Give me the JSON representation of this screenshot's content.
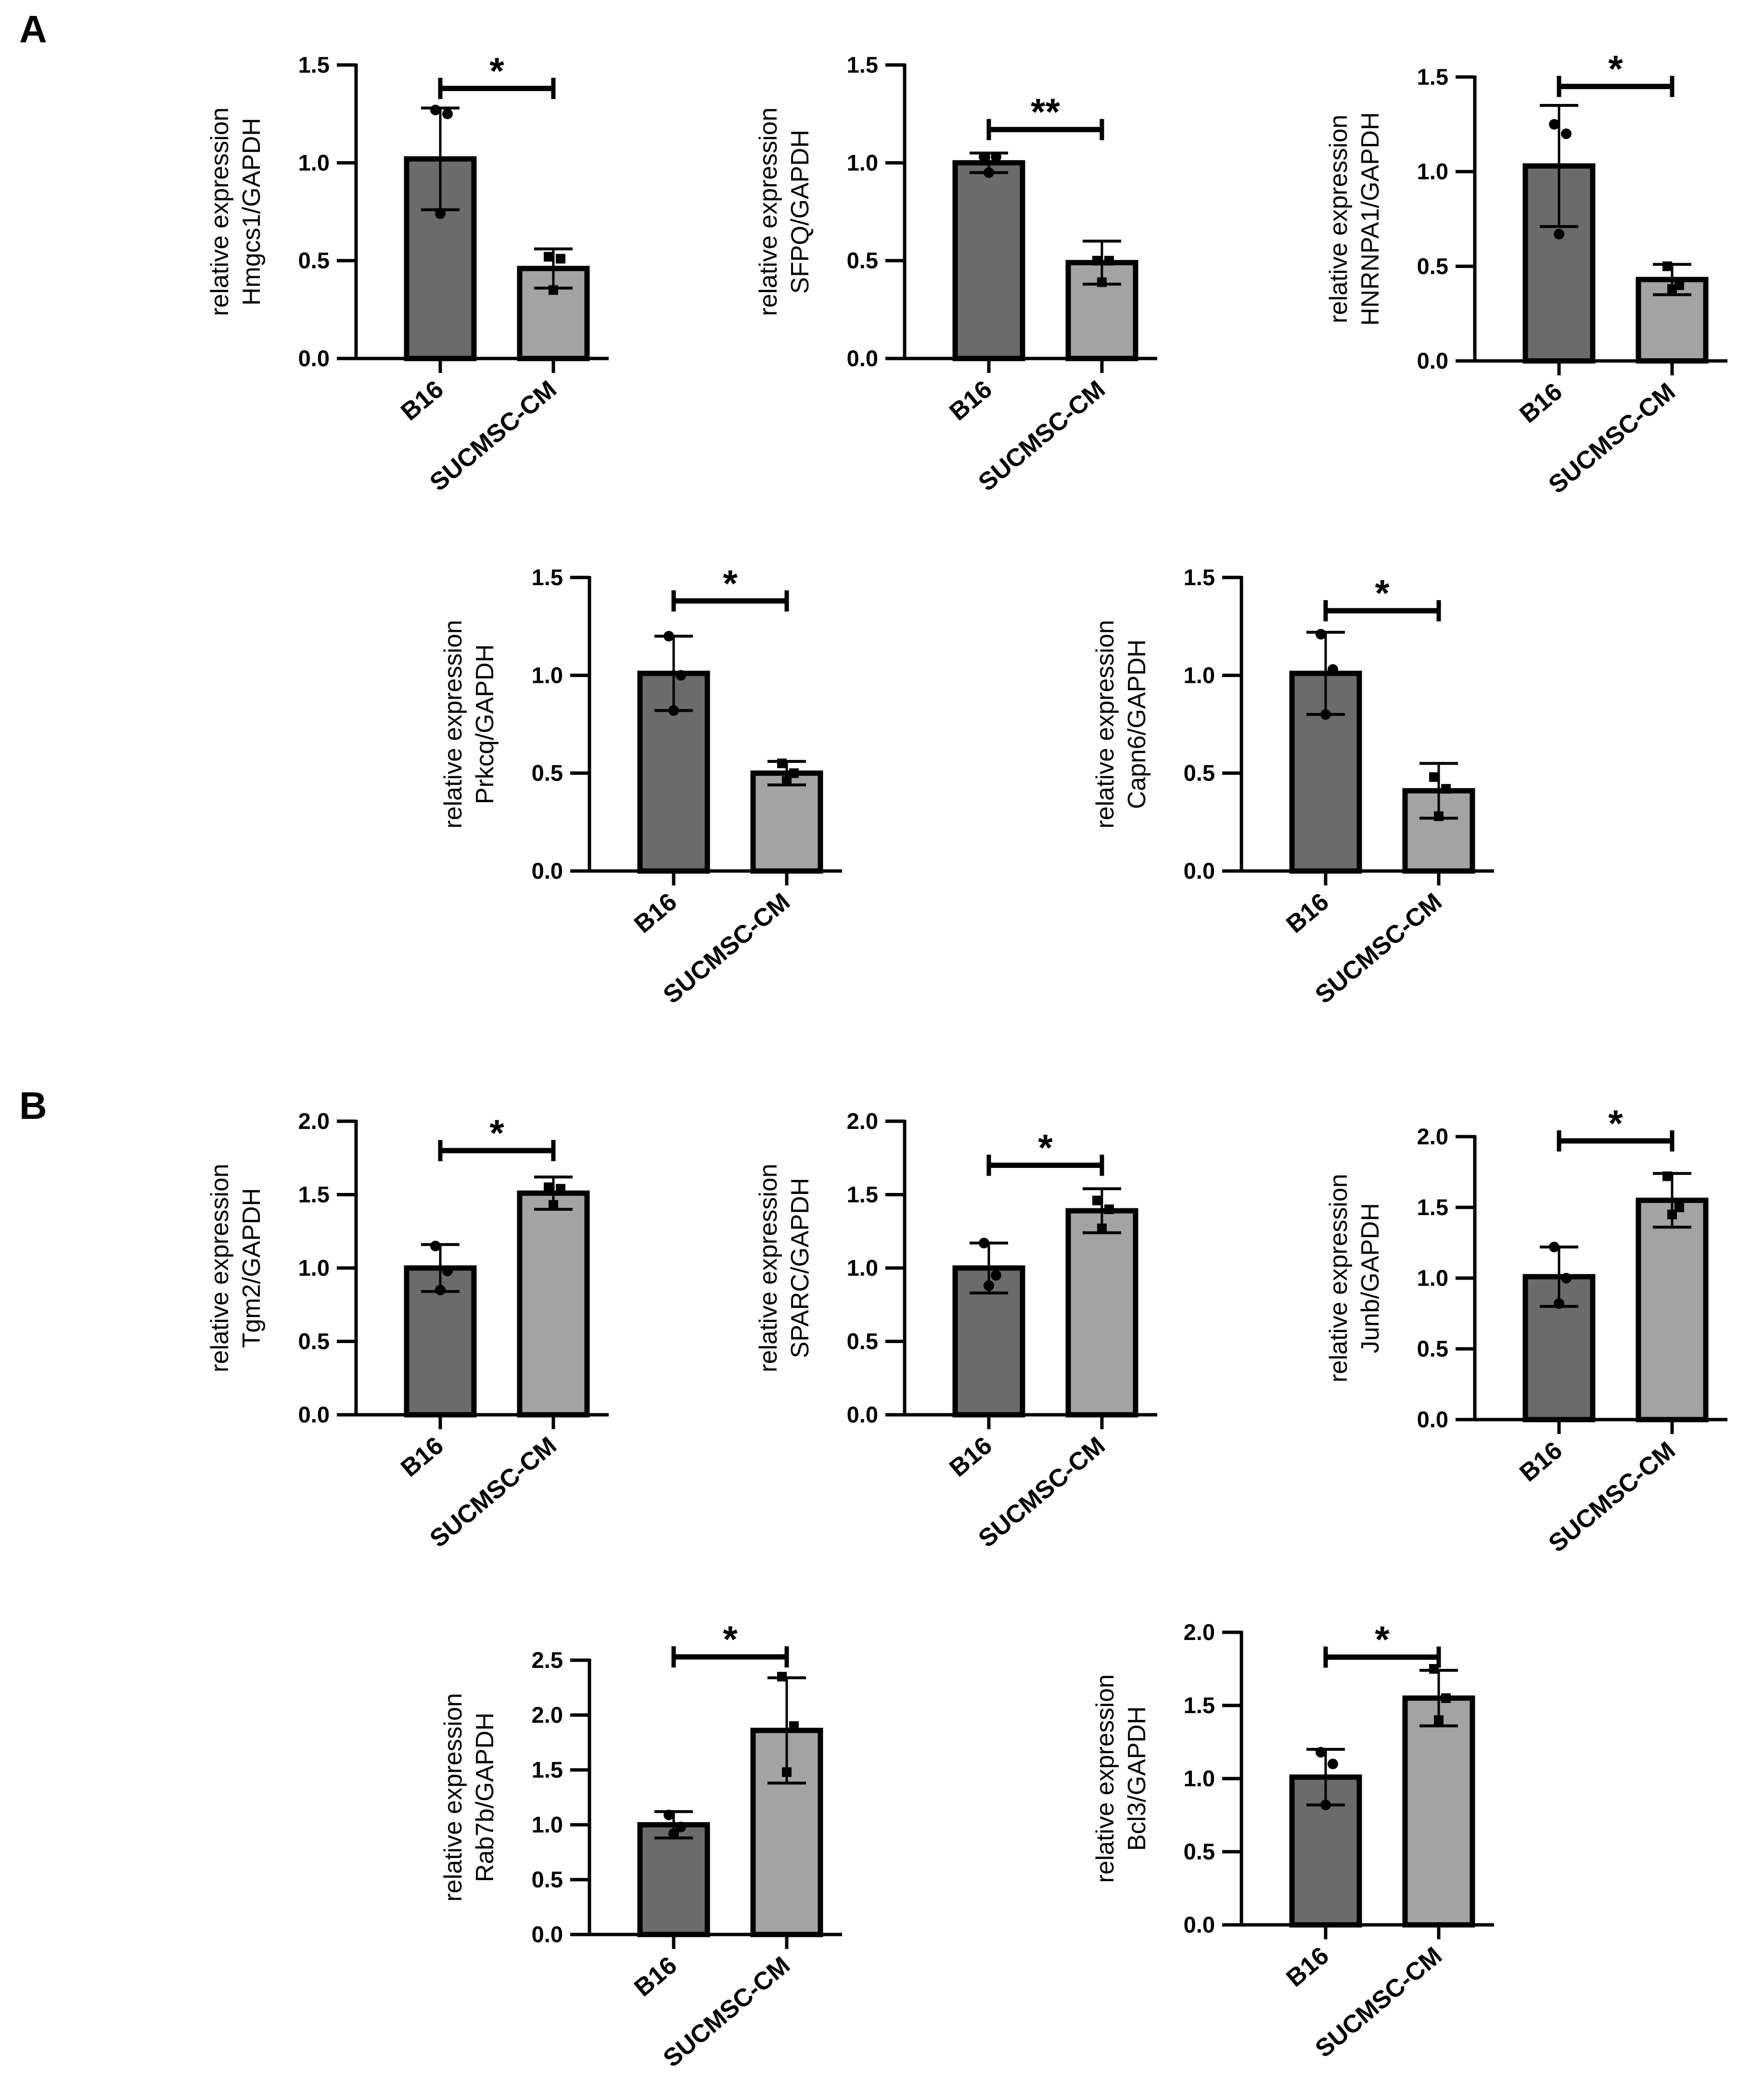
{
  "panels": [
    {
      "letter": "A"
    },
    {
      "letter": "B"
    }
  ],
  "colors": {
    "bar_dark": "#6b6b6b",
    "bar_light": "#a3a3a3",
    "ink": "#000000"
  },
  "chart_data": [
    {
      "type": "bar",
      "panel": "A",
      "categories": [
        "B16",
        "SUCMSC-CM"
      ],
      "values": [
        1.02,
        0.46
      ],
      "sd": [
        0.26,
        0.1
      ],
      "points": [
        [
          1.27,
          1.25,
          0.74
        ],
        [
          0.52,
          0.51,
          0.35
        ]
      ],
      "ylabel": [
        "relative expression",
        "Hmgcs1/GAPDH"
      ],
      "ylim": [
        0,
        1.5
      ],
      "yticks": [
        0.0,
        0.5,
        1.0,
        1.5
      ],
      "yticklabels": [
        "0.0",
        "0.5",
        "1.0",
        "1.5"
      ],
      "significance": "*",
      "sig_level": 1.38
    },
    {
      "type": "bar",
      "panel": "A",
      "categories": [
        "B16",
        "SUCMSC-CM"
      ],
      "values": [
        1.0,
        0.49
      ],
      "sd": [
        0.05,
        0.11
      ],
      "points": [
        [
          1.03,
          1.03,
          0.95
        ],
        [
          0.5,
          0.5,
          0.39
        ]
      ],
      "ylabel": [
        "relative expression",
        "SFPQ/GAPDH"
      ],
      "ylim": [
        0,
        1.5
      ],
      "yticks": [
        0.0,
        0.5,
        1.0,
        1.5
      ],
      "yticklabels": [
        "0.0",
        "0.5",
        "1.0",
        "1.5"
      ],
      "significance": "**",
      "sig_level": 1.17
    },
    {
      "type": "bar",
      "panel": "A",
      "categories": [
        "B16",
        "SUCMSC-CM"
      ],
      "values": [
        1.03,
        0.43
      ],
      "sd": [
        0.32,
        0.08
      ],
      "points": [
        [
          1.25,
          1.2,
          0.67
        ],
        [
          0.5,
          0.4,
          0.38
        ]
      ],
      "ylabel": [
        "relative expression",
        "HNRNPA1/GAPDH"
      ],
      "ylim": [
        0,
        1.5
      ],
      "yticks": [
        0.0,
        0.5,
        1.0,
        1.5
      ],
      "yticklabels": [
        "0.0",
        "0.5",
        "1.0",
        "1.5"
      ],
      "significance": "*",
      "sig_level": 1.45
    },
    {
      "type": "bar",
      "panel": "A",
      "categories": [
        "B16",
        "SUCMSC-CM"
      ],
      "values": [
        1.01,
        0.5
      ],
      "sd": [
        0.19,
        0.06
      ],
      "points": [
        [
          1.2,
          1.0,
          0.82
        ],
        [
          0.55,
          0.5,
          0.46
        ]
      ],
      "ylabel": [
        "relative expression",
        "Prkcq/GAPDH"
      ],
      "ylim": [
        0,
        1.5
      ],
      "yticks": [
        0.0,
        0.5,
        1.0,
        1.5
      ],
      "yticklabels": [
        "0.0",
        "0.5",
        "1.0",
        "1.5"
      ],
      "significance": "*",
      "sig_level": 1.38
    },
    {
      "type": "bar",
      "panel": "A",
      "categories": [
        "B16",
        "SUCMSC-CM"
      ],
      "values": [
        1.01,
        0.41
      ],
      "sd": [
        0.21,
        0.14
      ],
      "points": [
        [
          1.21,
          1.03,
          0.8
        ],
        [
          0.48,
          0.42,
          0.28
        ]
      ],
      "ylabel": [
        "relative expression",
        "Capn6/GAPDH"
      ],
      "ylim": [
        0,
        1.5
      ],
      "yticks": [
        0.0,
        0.5,
        1.0,
        1.5
      ],
      "yticklabels": [
        "0.0",
        "0.5",
        "1.0",
        "1.5"
      ],
      "significance": "*",
      "sig_level": 1.33
    },
    {
      "type": "bar",
      "panel": "B",
      "categories": [
        "B16",
        "SUCMSC-CM"
      ],
      "values": [
        1.0,
        1.51
      ],
      "sd": [
        0.16,
        0.11
      ],
      "points": [
        [
          1.15,
          0.98,
          0.85
        ],
        [
          1.55,
          1.54,
          1.43
        ]
      ],
      "ylabel": [
        "relative expression",
        "Tgm2/GAPDH"
      ],
      "ylim": [
        0,
        2.0
      ],
      "yticks": [
        0.0,
        0.5,
        1.0,
        1.5,
        2.0
      ],
      "yticklabels": [
        "0.0",
        "0.5",
        "1.0",
        "1.5",
        "2.0"
      ],
      "significance": "*",
      "sig_level": 1.8
    },
    {
      "type": "bar",
      "panel": "B",
      "categories": [
        "B16",
        "SUCMSC-CM"
      ],
      "values": [
        1.0,
        1.39
      ],
      "sd": [
        0.17,
        0.15
      ],
      "points": [
        [
          1.17,
          0.95,
          0.88
        ],
        [
          1.46,
          1.4,
          1.27
        ]
      ],
      "ylabel": [
        "relative expression",
        "SPARC/GAPDH"
      ],
      "ylim": [
        0,
        2.0
      ],
      "yticks": [
        0.0,
        0.5,
        1.0,
        1.5,
        2.0
      ],
      "yticklabels": [
        "0.0",
        "0.5",
        "1.0",
        "1.5",
        "2.0"
      ],
      "significance": "*",
      "sig_level": 1.7
    },
    {
      "type": "bar",
      "panel": "B",
      "categories": [
        "B16",
        "SUCMSC-CM"
      ],
      "values": [
        1.01,
        1.55
      ],
      "sd": [
        0.21,
        0.19
      ],
      "points": [
        [
          1.22,
          1.0,
          0.82
        ],
        [
          1.72,
          1.5,
          1.45
        ]
      ],
      "ylabel": [
        "relative expression",
        "Junb/GAPDH"
      ],
      "ylim": [
        0,
        2.0
      ],
      "yticks": [
        0.0,
        0.5,
        1.0,
        1.5,
        2.0
      ],
      "yticklabels": [
        "0.0",
        "0.5",
        "1.0",
        "1.5",
        "2.0"
      ],
      "significance": "*",
      "sig_level": 1.97
    },
    {
      "type": "bar",
      "panel": "B",
      "categories": [
        "B16",
        "SUCMSC-CM"
      ],
      "values": [
        1.0,
        1.86
      ],
      "sd": [
        0.12,
        0.48
      ],
      "points": [
        [
          1.09,
          0.98,
          0.92
        ],
        [
          2.35,
          1.9,
          1.48
        ]
      ],
      "ylabel": [
        "relative expression",
        "Rab7b/GAPDH"
      ],
      "ylim": [
        0,
        2.5
      ],
      "yticks": [
        0.0,
        0.5,
        1.0,
        1.5,
        2.0,
        2.5
      ],
      "yticklabels": [
        "0.0",
        "0.5",
        "1.0",
        "1.5",
        "2.0",
        "2.5"
      ],
      "significance": "*",
      "sig_level": 2.53
    },
    {
      "type": "bar",
      "panel": "B",
      "categories": [
        "B16",
        "SUCMSC-CM"
      ],
      "values": [
        1.01,
        1.55
      ],
      "sd": [
        0.19,
        0.19
      ],
      "points": [
        [
          1.18,
          1.1,
          0.82
        ],
        [
          1.75,
          1.55,
          1.4
        ]
      ],
      "ylabel": [
        "relative expression",
        "Bcl3/GAPDH"
      ],
      "ylim": [
        0,
        2.0
      ],
      "yticks": [
        0.0,
        0.5,
        1.0,
        1.5,
        2.0
      ],
      "yticklabels": [
        "0.0",
        "0.5",
        "1.0",
        "1.5",
        "2.0"
      ],
      "significance": "*",
      "sig_level": 1.83
    }
  ]
}
